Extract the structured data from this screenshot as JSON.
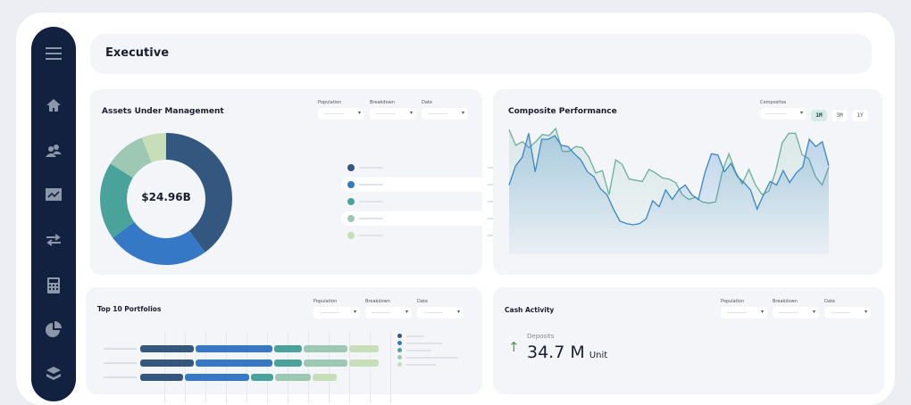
{
  "header": {
    "title": "Executive"
  },
  "sidebar": {
    "items": [
      {
        "icon": "menu-icon"
      },
      {
        "icon": "home-icon"
      },
      {
        "icon": "users-icon"
      },
      {
        "icon": "chart-folder-icon"
      },
      {
        "icon": "transfer-icon"
      },
      {
        "icon": "calculator-icon"
      },
      {
        "icon": "pie-chart-icon"
      },
      {
        "icon": "layers-icon"
      }
    ]
  },
  "filters": {
    "population": "Population",
    "breakdown": "Breakdown",
    "date": "Date",
    "composites": "Composites"
  },
  "aum": {
    "title": "Assets Under Management",
    "total": "$24.96B",
    "currency": "USD",
    "colors": [
      "#33577f",
      "#3578c6",
      "#4aa39a",
      "#9dc8b4",
      "#c8deb8"
    ],
    "chart_data": {
      "type": "pie",
      "donut": true,
      "values": [
        40,
        25,
        19,
        10,
        6
      ]
    }
  },
  "composite": {
    "title": "Composite Performance",
    "ranges": [
      "1M",
      "3M",
      "1Y"
    ],
    "active_range": "1M",
    "chart_data": {
      "type": "area",
      "series": [
        {
          "color": "#3a86c8",
          "values": [
            53,
            69,
            76,
            96,
            64,
            91,
            91,
            94,
            86,
            85,
            79,
            74,
            64,
            60,
            50,
            45,
            33,
            23,
            21,
            20,
            21,
            25,
            40,
            35,
            49,
            41,
            49,
            53,
            45,
            41,
            63,
            79,
            78,
            64,
            71,
            60,
            55,
            49,
            33,
            45,
            56,
            53,
            65,
            55,
            63,
            68,
            91,
            85,
            89,
            69
          ]
        },
        {
          "color": "#6aaf97",
          "values": [
            99,
            86,
            89,
            84,
            89,
            95,
            94,
            100,
            81,
            81,
            85,
            84,
            76,
            63,
            65,
            45,
            74,
            70,
            58,
            57,
            56,
            66,
            63,
            59,
            58,
            55,
            45,
            41,
            43,
            39,
            38,
            39,
            64,
            79,
            64,
            54,
            66,
            53,
            45,
            48,
            64,
            88,
            96,
            96,
            78,
            75,
            60,
            53,
            68
          ]
        }
      ]
    }
  },
  "top10": {
    "title": "Top 10 Portfolios",
    "chart_data": {
      "type": "bar",
      "stacked": true,
      "orientation": "horizontal",
      "colors": [
        "#33577f",
        "#3578c6",
        "#4aa39a",
        "#9dc8b4",
        "#c8deb8"
      ],
      "rows": [
        [
          62,
          88,
          33,
          51,
          35
        ],
        [
          62,
          88,
          33,
          51,
          35
        ],
        [
          50,
          74,
          27,
          42,
          29
        ]
      ]
    }
  },
  "cash": {
    "title": "Cash Activity",
    "deposits_label": "Deposits",
    "deposits_value": "34.7 M",
    "unit": "Unit",
    "trend": "up",
    "trend_color": "#5a9a3c"
  }
}
